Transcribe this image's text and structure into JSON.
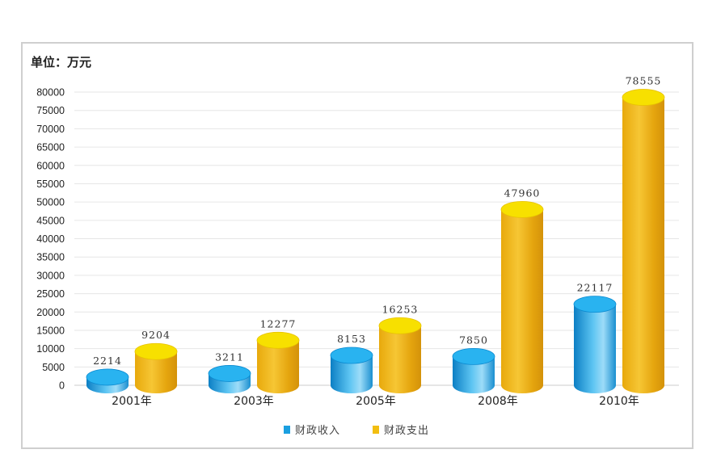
{
  "chart_data": {
    "type": "bar",
    "unit_label": "单位：万元",
    "categories": [
      "2001年",
      "2003年",
      "2005年",
      "2008年",
      "2010年"
    ],
    "series": [
      {
        "name": "财政收入",
        "values": [
          2214,
          3211,
          8153,
          7850,
          22117
        ],
        "color": "#1a9fe0",
        "top_color": "#29b3f0"
      },
      {
        "name": "财政支出",
        "values": [
          9204,
          12277,
          16253,
          47960,
          78555
        ],
        "color": "#e9a90f",
        "top_color": "#f7e000"
      }
    ],
    "ylim": [
      0,
      80000
    ],
    "ytick_step": 5000,
    "yticks": [
      "0",
      "5000",
      "10000",
      "15000",
      "20000",
      "25000",
      "30000",
      "35000",
      "40000",
      "45000",
      "50000",
      "55000",
      "60000",
      "65000",
      "70000",
      "75000",
      "80000"
    ],
    "grid": true,
    "legend_position": "bottom-center"
  }
}
